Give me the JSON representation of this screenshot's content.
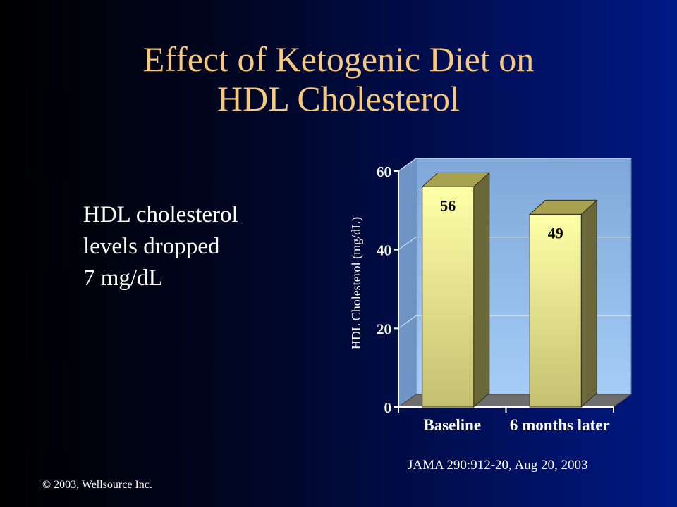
{
  "slide": {
    "title_line1": "Effect of Ketogenic Diet on",
    "title_line2": "HDL Cholesterol",
    "bullet_lines": [
      "HDL cholesterol",
      "levels dropped",
      "7 mg/dL"
    ],
    "source": "JAMA 290:912-20, Aug 20,  2003",
    "copyright": "© 2003, Wellsource Inc."
  },
  "chart_data": {
    "type": "bar",
    "categories": [
      "Baseline",
      "6 months later"
    ],
    "values": [
      56,
      49
    ],
    "data_labels": [
      "56",
      "49"
    ],
    "ylabel": "HDL Cholesterol (mg/dL)",
    "ylim": [
      0,
      60
    ],
    "yticks": [
      0,
      20,
      40,
      60
    ],
    "ytick_labels": [
      "0",
      "20",
      "40",
      "60"
    ],
    "grid": true,
    "style": "3d-column",
    "colors": {
      "plot_bg_top": "#7fa8d8",
      "plot_bg_bottom": "#a4ccf6",
      "bar_front_top": "#ffffa8",
      "bar_front_bottom": "#c4c070",
      "bar_side": "#6a6838",
      "bar_top": "#a8a250",
      "floor": "#6e6e6e"
    }
  }
}
